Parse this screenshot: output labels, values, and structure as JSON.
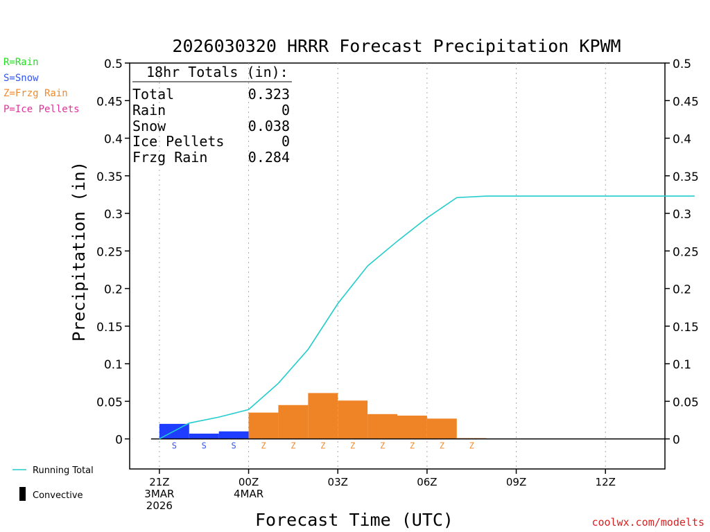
{
  "legend": {
    "rain": {
      "label": "R=Rain",
      "color": "#22dd22"
    },
    "snow": {
      "label": "S=Snow",
      "color": "#3355ee"
    },
    "frzg": {
      "label": "Z=Frzg Rain",
      "color": "#f08a2c"
    },
    "pellets": {
      "label": "P=Ice Pellets",
      "color": "#e0309a"
    },
    "running_total": "Running Total",
    "convective": "Convective"
  },
  "totals": {
    "header": "18hr Totals (in):",
    "rows": [
      {
        "label": "Total",
        "value": "0.323"
      },
      {
        "label": "Rain",
        "value": "0"
      },
      {
        "label": "Snow",
        "value": "0.038"
      },
      {
        "label": "Ice Pellets",
        "value": "0"
      },
      {
        "label": "Frzg Rain",
        "value": "0.284"
      }
    ]
  },
  "credit": "coolwx.com/modelts",
  "colors": {
    "snow": "#1f3dff",
    "frzg": "#ef8427",
    "running": "#22cccc",
    "grid": "#aaaaaa"
  },
  "chart_data": {
    "type": "bar",
    "title": "2026030320 HRRR Forecast Precipitation KPWM",
    "xlabel": "Forecast Time (UTC)",
    "ylabel": "Precipitation (in)",
    "ylim": [
      -0.04,
      0.5
    ],
    "xlim": [
      -1,
      17
    ],
    "y_ticks": [
      0,
      0.05,
      0.1,
      0.15,
      0.2,
      0.25,
      0.3,
      0.35,
      0.4,
      0.45,
      0.5
    ],
    "x_ticks": [
      {
        "hour": 0,
        "lines": [
          "21Z",
          "3MAR",
          "2026"
        ]
      },
      {
        "hour": 3,
        "lines": [
          "00Z",
          "4MAR"
        ]
      },
      {
        "hour": 6,
        "lines": [
          "03Z"
        ]
      },
      {
        "hour": 9,
        "lines": [
          "06Z"
        ]
      },
      {
        "hour": 12,
        "lines": [
          "09Z"
        ]
      },
      {
        "hour": 15,
        "lines": [
          "12Z"
        ]
      }
    ],
    "hours": [
      1,
      2,
      3,
      4,
      5,
      6,
      7,
      8,
      9,
      10,
      11,
      12,
      13,
      14,
      15,
      16,
      17,
      18
    ],
    "hourly_precip": [
      0.02,
      0.007,
      0.01,
      0.035,
      0.045,
      0.061,
      0.051,
      0.033,
      0.031,
      0.027,
      0.001,
      0,
      0,
      0,
      0,
      0,
      0,
      0
    ],
    "ptype": [
      "S",
      "S",
      "S",
      "Z",
      "Z",
      "Z",
      "Z",
      "Z",
      "Z",
      "Z",
      "Z",
      "",
      "",
      "",
      "",
      "",
      "",
      ""
    ],
    "running_total": {
      "hours": [
        0,
        1,
        2,
        3,
        4,
        5,
        6,
        7,
        8,
        9,
        10,
        11,
        12,
        13,
        14,
        15,
        16,
        17,
        18
      ],
      "values": [
        0,
        0.021,
        0.029,
        0.039,
        0.074,
        0.119,
        0.18,
        0.23,
        0.263,
        0.294,
        0.321,
        0.323,
        0.323,
        0.323,
        0.323,
        0.323,
        0.323,
        0.323,
        0.323
      ]
    }
  }
}
